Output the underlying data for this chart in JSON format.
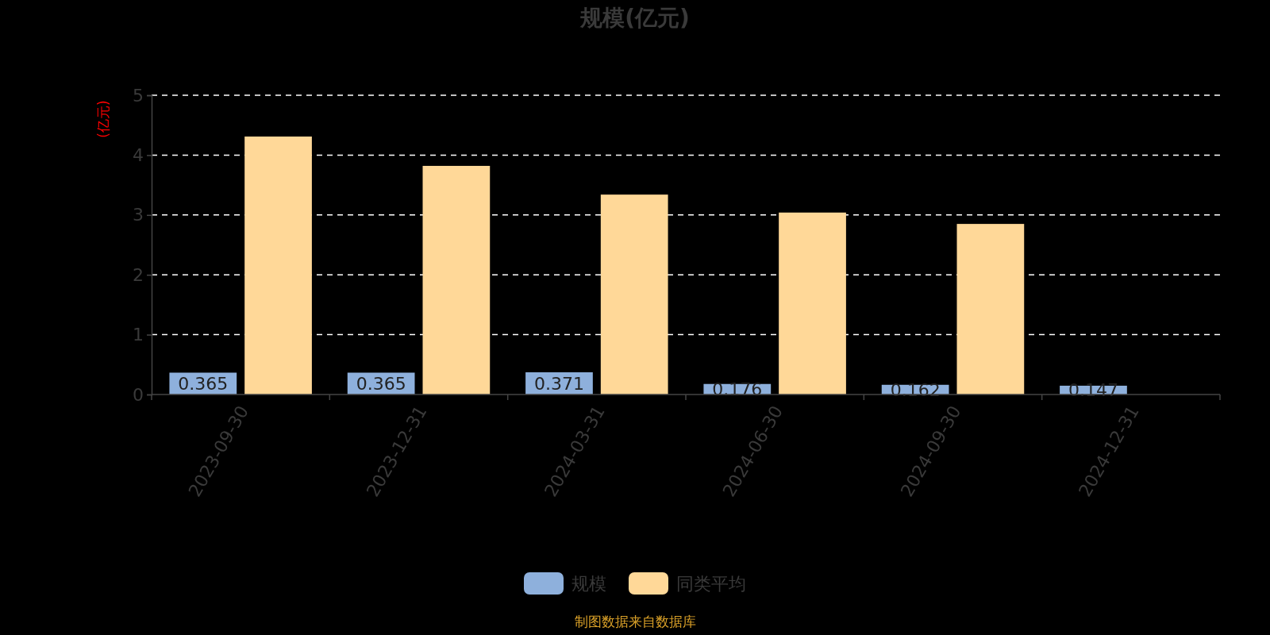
{
  "chart_data": {
    "type": "bar",
    "title": "规模(亿元)",
    "ylabel": "(亿元)",
    "categories": [
      "2023-09-30",
      "2023-12-31",
      "2024-03-31",
      "2024-06-30",
      "2024-09-30",
      "2024-12-31"
    ],
    "series": [
      {
        "name": "规模",
        "color": "#8eb0dc",
        "values": [
          0.365,
          0.365,
          0.371,
          0.176,
          0.162,
          0.147
        ],
        "value_labels": [
          "0.365",
          "0.365",
          "0.371",
          "0.176",
          "0.162",
          "0.147"
        ]
      },
      {
        "name": "同类平均",
        "color": "#ffd898",
        "values": [
          4.31,
          3.82,
          3.34,
          3.04,
          2.85,
          null
        ]
      }
    ],
    "ylim": [
      0,
      5
    ],
    "yticks": [
      0,
      1,
      2,
      3,
      4,
      5
    ],
    "grid": "y",
    "legend": "bottom",
    "annotations": [
      "制图数据来自数据库"
    ]
  }
}
